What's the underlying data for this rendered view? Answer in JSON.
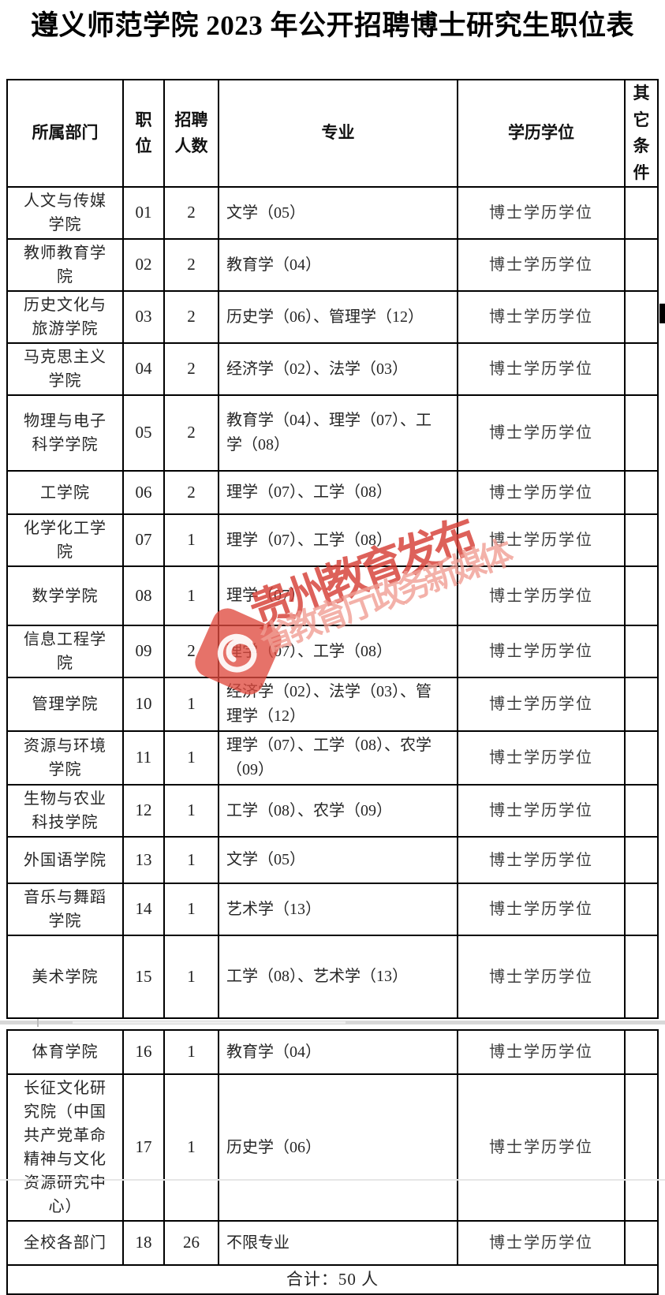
{
  "title": "遵义师范学院 2023 年公开招聘博士研究生职位表",
  "watermark": {
    "main": "贵州教育发布",
    "sub": "省教育厅政务新媒体",
    "logo": "guizhou-education-swirl-logo",
    "main_color": "#d53e36",
    "sub_color": "#f09e94"
  },
  "columns": [
    {
      "key": "dept",
      "label": "所属部门"
    },
    {
      "key": "pos",
      "label": "职位"
    },
    {
      "key": "count",
      "label": "招聘人数"
    },
    {
      "key": "major",
      "label": "专业"
    },
    {
      "key": "degree",
      "label": "学历学位"
    },
    {
      "key": "other",
      "label": "其它条件"
    }
  ],
  "table1": {
    "rows": [
      {
        "dept": "人文与传媒学院",
        "pos": "01",
        "count": "2",
        "major": "文学（05）",
        "degree": "博士学历学位",
        "other": ""
      },
      {
        "dept": "教师教育学院",
        "pos": "02",
        "count": "2",
        "major": "教育学（04）",
        "degree": "博士学历学位",
        "other": ""
      },
      {
        "dept": "历史文化与旅游学院",
        "pos": "03",
        "count": "2",
        "major": "历史学（06）、管理学（12）",
        "degree": "博士学历学位",
        "other": ""
      },
      {
        "dept": "马克思主义学院",
        "pos": "04",
        "count": "2",
        "major": "经济学（02）、法学（03）",
        "degree": "博士学历学位",
        "other": ""
      },
      {
        "dept": "物理与电子科学学院",
        "pos": "05",
        "count": "2",
        "major": "教育学（04）、理学（07）、工学（08）",
        "degree": "博士学历学位",
        "other": ""
      },
      {
        "dept": "工学院",
        "pos": "06",
        "count": "2",
        "major": "理学（07）、工学（08）",
        "degree": "博士学历学位",
        "other": ""
      },
      {
        "dept": "化学化工学院",
        "pos": "07",
        "count": "1",
        "major": "理学（07）、工学（08）",
        "degree": "博士学历学位",
        "other": ""
      },
      {
        "dept": "数学学院",
        "pos": "08",
        "count": "1",
        "major": "理学（07）",
        "degree": "博士学历学位",
        "other": ""
      },
      {
        "dept": "信息工程学院",
        "pos": "09",
        "count": "2",
        "major": "理学（07）、工学（08）",
        "degree": "博士学历学位",
        "other": ""
      },
      {
        "dept": "管理学院",
        "pos": "10",
        "count": "1",
        "major": "经济学（02）、法学（03）、管理学（12）",
        "degree": "博士学历学位",
        "other": ""
      },
      {
        "dept": "资源与环境学院",
        "pos": "11",
        "count": "1",
        "major": "理学（07）、工学（08）、农学（09）",
        "degree": "博士学历学位",
        "other": ""
      },
      {
        "dept": "生物与农业科技学院",
        "pos": "12",
        "count": "1",
        "major": "工学（08）、农学（09）",
        "degree": "博士学历学位",
        "other": ""
      },
      {
        "dept": "外国语学院",
        "pos": "13",
        "count": "1",
        "major": "文学（05）",
        "degree": "博士学历学位",
        "other": ""
      },
      {
        "dept": "音乐与舞蹈学院",
        "pos": "14",
        "count": "1",
        "major": "艺术学（13）",
        "degree": "博士学历学位",
        "other": ""
      },
      {
        "dept": "美术学院",
        "pos": "15",
        "count": "1",
        "major": "工学（08）、艺术学（13）",
        "degree": "博士学历学位",
        "other": ""
      }
    ]
  },
  "table2": {
    "rows": [
      {
        "dept": "体育学院",
        "pos": "16",
        "count": "1",
        "major": "教育学（04）",
        "degree": "博士学历学位",
        "other": ""
      },
      {
        "dept": "长征文化研究院（中国共产党革命精神与文化资源研究中心）",
        "pos": "17",
        "count": "1",
        "major": "历史学（06）",
        "degree": "博士学历学位",
        "other": ""
      },
      {
        "dept": "全校各部门",
        "pos": "18",
        "count": "26",
        "major": "不限专业",
        "degree": "博士学历学位",
        "other": ""
      }
    ],
    "footer": "合计：50 人"
  }
}
